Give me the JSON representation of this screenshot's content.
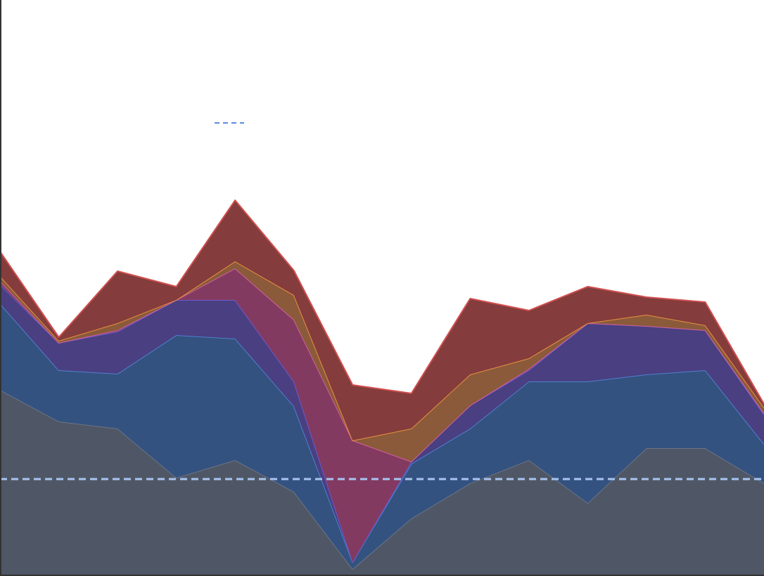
{
  "chart_data": {
    "type": "stacked_area",
    "categories": [
      null,
      null,
      null,
      null,
      null,
      null,
      null,
      null,
      null,
      null,
      null,
      null,
      null,
      null
    ],
    "ylim": [
      0,
      82
    ],
    "reference_line": {
      "value": 13.8,
      "color": "#a9c4f0"
    },
    "series": [
      {
        "color": "#4f5766",
        "stroke": "#6b7487",
        "values": [
          26.5,
          22,
          21,
          14,
          16.5,
          12,
          1,
          8.2,
          13.2,
          16.5,
          10.4,
          18.2,
          18.2,
          13.2
        ]
      },
      {
        "color": "#34527f",
        "stroke": "#4f7fd0",
        "values": [
          12.3,
          7.3,
          7.8,
          20.3,
          17.3,
          12.2,
          1,
          7.8,
          7.8,
          11.2,
          17.3,
          10.5,
          11.1,
          5.6
        ]
      },
      {
        "color": "#4a3f80",
        "stroke": "#6a5acd",
        "values": [
          2.7,
          3.9,
          6,
          5,
          5.5,
          3.5,
          0,
          0.3,
          3.3,
          1.6,
          8.3,
          6.9,
          5.7,
          4.2
        ]
      },
      {
        "color": "#833a60",
        "stroke": "#d060a0",
        "values": [
          0.5,
          0,
          0.2,
          0,
          4.5,
          8.8,
          17.3,
          0,
          0,
          0.2,
          0,
          0,
          0,
          0.2
        ]
      },
      {
        "color": "#8a5a3a",
        "stroke": "#e89040",
        "values": [
          0.7,
          0.3,
          1,
          0,
          1,
          3.5,
          0,
          4.7,
          4.4,
          1.5,
          0,
          1.6,
          0.7,
          0.8
        ]
      },
      {
        "color": "#843c3c",
        "stroke": "#d05050",
        "values": [
          3.5,
          0.5,
          7.4,
          1.9,
          8.7,
          3.5,
          7.9,
          5,
          10.8,
          6.8,
          5.2,
          2.5,
          3.3,
          0.5
        ]
      }
    ]
  }
}
